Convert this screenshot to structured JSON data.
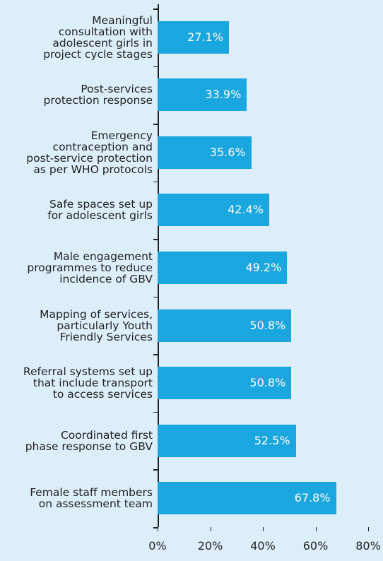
{
  "chart_data": {
    "type": "bar",
    "orientation": "horizontal",
    "categories": [
      "Meaningful\nconsultation with\nadolescent girls in\nproject cycle stages",
      "Post-services\nprotection response",
      "Emergency\ncontraception and\npost-service protection\nas per WHO protocols",
      "Safe spaces set up\nfor adolescent girls",
      "Male engagement\nprogrammes to reduce\nincidence of GBV",
      "Mapping of services,\nparticularly Youth\nFriendly Services",
      "Referral systems set up\nthat include transport\nto access services",
      "Coordinated first\nphase response to GBV",
      "Female staff members\non assessment team"
    ],
    "values": [
      27.1,
      33.9,
      35.6,
      42.4,
      49.2,
      50.8,
      50.8,
      52.5,
      67.8
    ],
    "value_labels": [
      "27.1%",
      "33.9%",
      "35.6%",
      "42.4%",
      "49.2%",
      "50.8%",
      "50.8%",
      "52.5%",
      "67.8%"
    ],
    "color": "#1aa6df",
    "xlim": [
      0,
      80
    ],
    "xticks": [
      {
        "value": 0,
        "label": "0%"
      },
      {
        "value": 20,
        "label": "20%"
      },
      {
        "value": 40,
        "label": "40%"
      },
      {
        "value": 60,
        "label": "60%"
      },
      {
        "value": 80,
        "label": "80%"
      }
    ]
  }
}
